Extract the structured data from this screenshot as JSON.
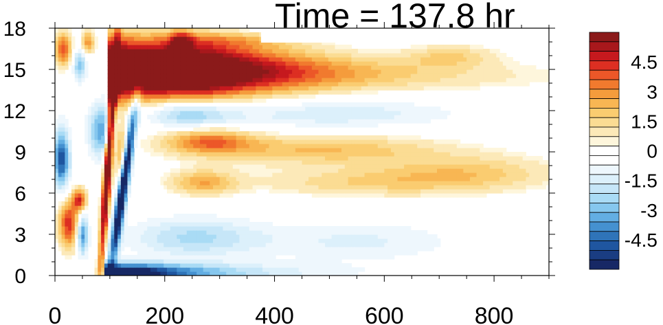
{
  "chart_data": {
    "type": "heatmap",
    "title": "Time = 137.8 hr",
    "xlabel": "",
    "ylabel": "",
    "xlim": [
      0,
      900
    ],
    "ylim": [
      0,
      18
    ],
    "x_ticks": [
      "0",
      "200",
      "400",
      "600",
      "800"
    ],
    "y_ticks": [
      "0",
      "3",
      "6",
      "9",
      "12",
      "15",
      "18"
    ],
    "colorbar": {
      "min": -6,
      "max": 6,
      "step": 0.5,
      "tick_labels": [
        "4.5",
        "3",
        "1.5",
        "0",
        "-1.5",
        "-3",
        "-4.5"
      ],
      "tick_values": [
        4.5,
        3,
        1.5,
        0,
        -1.5,
        -3,
        -4.5
      ],
      "colors": [
        "#8b1a1a",
        "#a8181c",
        "#c6191e",
        "#dd2f22",
        "#ec5728",
        "#f17a2e",
        "#f59c3c",
        "#f8b653",
        "#facc70",
        "#fbdc93",
        "#fce9b8",
        "#fef6dc",
        "#ffffff",
        "#ffffff",
        "#eef7fd",
        "#dcf0fb",
        "#c6e6f8",
        "#a9dbf5",
        "#86c7ee",
        "#63aee3",
        "#4591d0",
        "#2f74b9",
        "#1f56a0",
        "#1a3d82",
        "#172865"
      ]
    },
    "features": [
      {
        "name": "upper-level-positive-band",
        "x": [
          90,
          600
        ],
        "y": [
          13,
          16.5
        ],
        "peak": 6
      },
      {
        "name": "low-level-negative-band",
        "x": [
          90,
          420
        ],
        "y": [
          0,
          1
        ],
        "peak": -6
      },
      {
        "name": "sloped-positive-front",
        "x": [
          80,
          130
        ],
        "y": [
          0,
          17
        ],
        "peak": 6
      },
      {
        "name": "sloped-negative-front",
        "x": [
          90,
          150
        ],
        "y": [
          1,
          12
        ],
        "peak": -6
      },
      {
        "name": "mid-level-positive-band",
        "x": [
          200,
          900
        ],
        "y": [
          6,
          11
        ],
        "peak": 2.5
      }
    ]
  }
}
